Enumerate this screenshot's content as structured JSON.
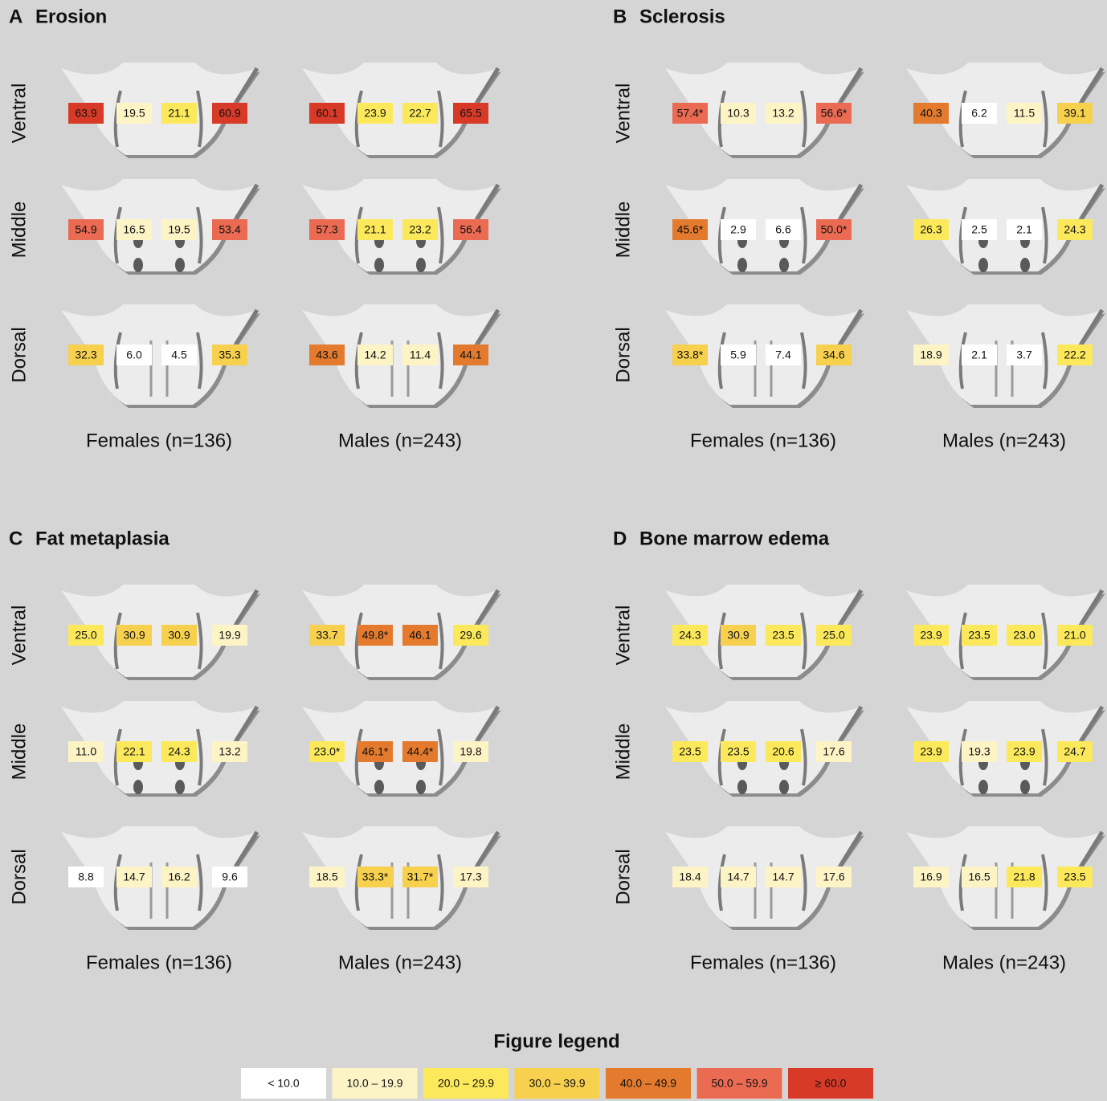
{
  "panels": [
    {
      "letter": "A",
      "title": "Erosion",
      "rows": [
        "Ventral",
        "Middle",
        "Dorsal"
      ],
      "groups": [
        {
          "label": "Females (n=136)",
          "cells": [
            [
              {
                "text": "63.9",
                "color": "#d83a28"
              },
              {
                "text": "19.5",
                "color": "#fdf4c6"
              },
              {
                "text": "21.1",
                "color": "#fbe95b"
              },
              {
                "text": "60.9",
                "color": "#d83a28"
              }
            ],
            [
              {
                "text": "54.9",
                "color": "#ea6a52"
              },
              {
                "text": "16.5",
                "color": "#fdf4c6"
              },
              {
                "text": "19.5",
                "color": "#fdf4c6"
              },
              {
                "text": "53.4",
                "color": "#ea6a52"
              }
            ],
            [
              {
                "text": "32.3",
                "color": "#f7d04e"
              },
              {
                "text": "6.0",
                "color": "#ffffff"
              },
              {
                "text": "4.5",
                "color": "#ffffff"
              },
              {
                "text": "35.3",
                "color": "#f7d04e"
              }
            ]
          ]
        },
        {
          "label": "Males (n=243)",
          "cells": [
            [
              {
                "text": "60.1",
                "color": "#d83a28"
              },
              {
                "text": "23.9",
                "color": "#fbe95b"
              },
              {
                "text": "22.7",
                "color": "#fbe95b"
              },
              {
                "text": "65.5",
                "color": "#d83a28"
              }
            ],
            [
              {
                "text": "57.3",
                "color": "#ea6a52"
              },
              {
                "text": "21.1",
                "color": "#fbe95b"
              },
              {
                "text": "23.2",
                "color": "#fbe95b"
              },
              {
                "text": "56.4",
                "color": "#ea6a52"
              }
            ],
            [
              {
                "text": "43.6",
                "color": "#e37a2e"
              },
              {
                "text": "14.2",
                "color": "#fdf4c6"
              },
              {
                "text": "11.4",
                "color": "#fdf4c6"
              },
              {
                "text": "44.1",
                "color": "#e37a2e"
              }
            ]
          ]
        }
      ]
    },
    {
      "letter": "B",
      "title": "Sclerosis",
      "rows": [
        "Ventral",
        "Middle",
        "Dorsal"
      ],
      "groups": [
        {
          "label": "Females (n=136)",
          "cells": [
            [
              {
                "text": "57.4*",
                "color": "#ea6a52"
              },
              {
                "text": "10.3",
                "color": "#fdf4c6"
              },
              {
                "text": "13.2",
                "color": "#fdf4c6"
              },
              {
                "text": "56.6*",
                "color": "#ea6a52"
              }
            ],
            [
              {
                "text": "45.6*",
                "color": "#e37a2e"
              },
              {
                "text": "2.9",
                "color": "#ffffff"
              },
              {
                "text": "6.6",
                "color": "#ffffff"
              },
              {
                "text": "50.0*",
                "color": "#ea6a52"
              }
            ],
            [
              {
                "text": "33.8*",
                "color": "#f7d04e"
              },
              {
                "text": "5.9",
                "color": "#ffffff"
              },
              {
                "text": "7.4",
                "color": "#ffffff"
              },
              {
                "text": "34.6",
                "color": "#f7d04e"
              }
            ]
          ]
        },
        {
          "label": "Males (n=243)",
          "cells": [
            [
              {
                "text": "40.3",
                "color": "#e37a2e"
              },
              {
                "text": "6.2",
                "color": "#ffffff"
              },
              {
                "text": "11.5",
                "color": "#fdf4c6"
              },
              {
                "text": "39.1",
                "color": "#f7d04e"
              }
            ],
            [
              {
                "text": "26.3",
                "color": "#fbe95b"
              },
              {
                "text": "2.5",
                "color": "#ffffff"
              },
              {
                "text": "2.1",
                "color": "#ffffff"
              },
              {
                "text": "24.3",
                "color": "#fbe95b"
              }
            ],
            [
              {
                "text": "18.9",
                "color": "#fdf4c6"
              },
              {
                "text": "2.1",
                "color": "#ffffff"
              },
              {
                "text": "3.7",
                "color": "#ffffff"
              },
              {
                "text": "22.2",
                "color": "#fbe95b"
              }
            ]
          ]
        }
      ]
    },
    {
      "letter": "C",
      "title": "Fat metaplasia",
      "rows": [
        "Ventral",
        "Middle",
        "Dorsal"
      ],
      "groups": [
        {
          "label": "Females (n=136)",
          "cells": [
            [
              {
                "text": "25.0",
                "color": "#fbe95b"
              },
              {
                "text": "30.9",
                "color": "#f7d04e"
              },
              {
                "text": "30.9",
                "color": "#f7d04e"
              },
              {
                "text": "19.9",
                "color": "#fdf4c6"
              }
            ],
            [
              {
                "text": "11.0",
                "color": "#fdf4c6"
              },
              {
                "text": "22.1",
                "color": "#fbe95b"
              },
              {
                "text": "24.3",
                "color": "#fbe95b"
              },
              {
                "text": "13.2",
                "color": "#fdf4c6"
              }
            ],
            [
              {
                "text": "8.8",
                "color": "#ffffff"
              },
              {
                "text": "14.7",
                "color": "#fdf4c6"
              },
              {
                "text": "16.2",
                "color": "#fdf4c6"
              },
              {
                "text": "9.6",
                "color": "#ffffff"
              }
            ]
          ]
        },
        {
          "label": "Males (n=243)",
          "cells": [
            [
              {
                "text": "33.7",
                "color": "#f7d04e"
              },
              {
                "text": "49.8*",
                "color": "#e37a2e"
              },
              {
                "text": "46.1",
                "color": "#e37a2e"
              },
              {
                "text": "29.6",
                "color": "#fbe95b"
              }
            ],
            [
              {
                "text": "23.0*",
                "color": "#fbe95b"
              },
              {
                "text": "46.1*",
                "color": "#e37a2e"
              },
              {
                "text": "44.4*",
                "color": "#e37a2e"
              },
              {
                "text": "19.8",
                "color": "#fdf4c6"
              }
            ],
            [
              {
                "text": "18.5",
                "color": "#fdf4c6"
              },
              {
                "text": "33.3*",
                "color": "#f7d04e"
              },
              {
                "text": "31.7*",
                "color": "#f7d04e"
              },
              {
                "text": "17.3",
                "color": "#fdf4c6"
              }
            ]
          ]
        }
      ]
    },
    {
      "letter": "D",
      "title": "Bone marrow edema",
      "rows": [
        "Ventral",
        "Middle",
        "Dorsal"
      ],
      "groups": [
        {
          "label": "Females (n=136)",
          "cells": [
            [
              {
                "text": "24.3",
                "color": "#fbe95b"
              },
              {
                "text": "30.9",
                "color": "#f7d04e"
              },
              {
                "text": "23.5",
                "color": "#fbe95b"
              },
              {
                "text": "25.0",
                "color": "#fbe95b"
              }
            ],
            [
              {
                "text": "23.5",
                "color": "#fbe95b"
              },
              {
                "text": "23.5",
                "color": "#fbe95b"
              },
              {
                "text": "20.6",
                "color": "#fbe95b"
              },
              {
                "text": "17.6",
                "color": "#fdf4c6"
              }
            ],
            [
              {
                "text": "18.4",
                "color": "#fdf4c6"
              },
              {
                "text": "14.7",
                "color": "#fdf4c6"
              },
              {
                "text": "14.7",
                "color": "#fdf4c6"
              },
              {
                "text": "17.6",
                "color": "#fdf4c6"
              }
            ]
          ]
        },
        {
          "label": "Males (n=243)",
          "cells": [
            [
              {
                "text": "23.9",
                "color": "#fbe95b"
              },
              {
                "text": "23.5",
                "color": "#fbe95b"
              },
              {
                "text": "23.0",
                "color": "#fbe95b"
              },
              {
                "text": "21.0",
                "color": "#fbe95b"
              }
            ],
            [
              {
                "text": "23.9",
                "color": "#fbe95b"
              },
              {
                "text": "19.3",
                "color": "#fdf4c6"
              },
              {
                "text": "23.9",
                "color": "#fbe95b"
              },
              {
                "text": "24.7",
                "color": "#fbe95b"
              }
            ],
            [
              {
                "text": "16.9",
                "color": "#fdf4c6"
              },
              {
                "text": "16.5",
                "color": "#fdf4c6"
              },
              {
                "text": "21.8",
                "color": "#fbe95b"
              },
              {
                "text": "23.5",
                "color": "#fbe95b"
              }
            ]
          ]
        }
      ]
    }
  ],
  "legend": {
    "title": "Figure legend",
    "items": [
      {
        "label": "< 10.0",
        "color": "#ffffff"
      },
      {
        "label": "10.0 – 19.9",
        "color": "#fdf4c6"
      },
      {
        "label": "20.0 – 29.9",
        "color": "#fbe95b"
      },
      {
        "label": "30.0 – 39.9",
        "color": "#f7d04e"
      },
      {
        "label": "40.0 – 49.9",
        "color": "#e37a2e"
      },
      {
        "label": "50.0 – 59.9",
        "color": "#ea6a52"
      },
      {
        "label": "≥ 60.0",
        "color": "#d83a28"
      }
    ]
  }
}
